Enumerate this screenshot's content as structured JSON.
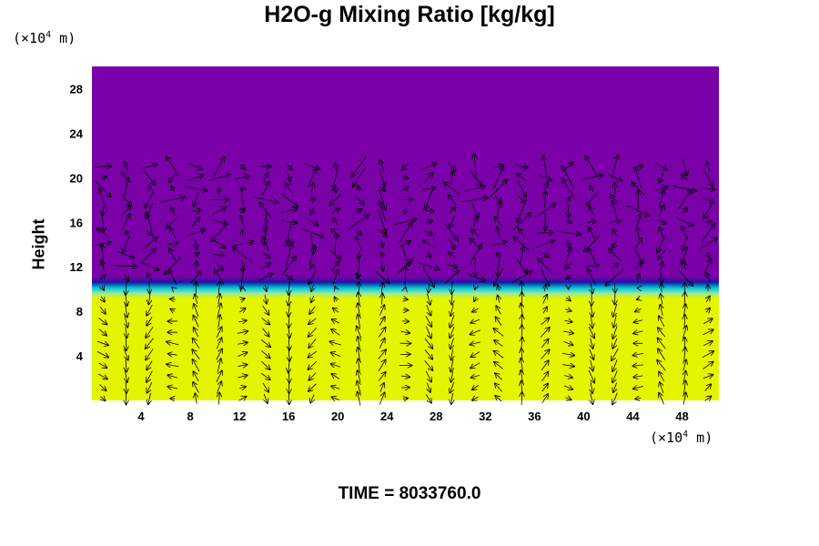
{
  "chart_data": {
    "type": "heatmap",
    "title": "H2O-g Mixing Ratio [kg/kg]",
    "xlabel": "",
    "ylabel": "Height",
    "x_unit_prefix": "(×10",
    "x_unit_exp": "4",
    "x_unit_suffix": " m)",
    "y_unit_prefix": "(×10",
    "y_unit_exp": "4",
    "y_unit_suffix": " m)",
    "xlim": [
      0,
      51
    ],
    "ylim": [
      0,
      30
    ],
    "x_ticks": [
      4,
      8,
      12,
      16,
      20,
      24,
      28,
      32,
      36,
      40,
      44,
      48
    ],
    "y_ticks": [
      4,
      8,
      12,
      16,
      20,
      24,
      28
    ],
    "colormap": {
      "upper_layer": "#7a00a8",
      "transition_dark": "#1a1aa0",
      "transition_light": "#00c8d8",
      "lower_layer": "#e4f500"
    },
    "layer_interface_height": 10.5,
    "vector_overlay": "velocity arrows"
  },
  "footer": {
    "time_label": "TIME = 8033760.0"
  }
}
